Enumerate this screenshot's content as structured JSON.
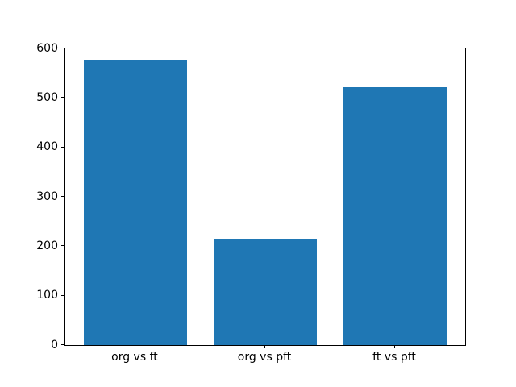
{
  "chart_data": {
    "type": "bar",
    "title": "",
    "xlabel": "",
    "ylabel": "",
    "categories": [
      "org vs ft",
      "org vs pft",
      "ft vs pft"
    ],
    "values": [
      575,
      215,
      521
    ],
    "ylim": [
      0,
      600
    ],
    "yticks": [
      0,
      100,
      200,
      300,
      400,
      500,
      600
    ],
    "bar_color": "#1f77b4",
    "spine_color": "#000000",
    "background_color": "#ffffff",
    "grid": false,
    "legend": null,
    "bar_width_fraction": 0.8,
    "xlim": [
      -0.54,
      2.54
    ]
  }
}
